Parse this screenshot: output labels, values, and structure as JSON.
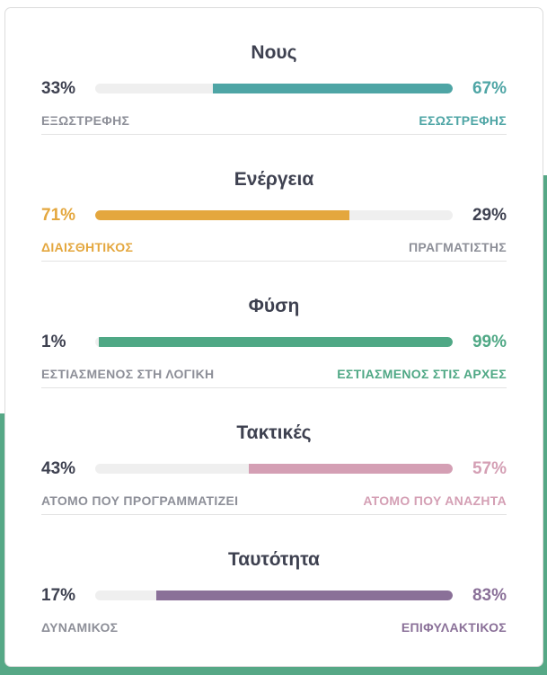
{
  "traits": [
    {
      "title": "Νους",
      "left": {
        "percent": "33%",
        "label": "ΕΞΩΣΤΡΕΦΗΣ",
        "value": 33
      },
      "right": {
        "percent": "67%",
        "label": "ΕΣΩΣΤΡΕΦΗΣ",
        "value": 67
      },
      "dominant": "right",
      "color": "#4ea5a5"
    },
    {
      "title": "Ενέργεια",
      "left": {
        "percent": "71%",
        "label": "ΔΙΑΙΣΘΗΤΙΚΟΣ",
        "value": 71
      },
      "right": {
        "percent": "29%",
        "label": "ΠΡΑΓΜΑΤΙΣΤΗΣ",
        "value": 29
      },
      "dominant": "left",
      "color": "#e4a73e"
    },
    {
      "title": "Φύση",
      "left": {
        "percent": "1%",
        "label": "ΕΣΤΙΑΣΜΕΝΟΣ ΣΤΗ ΛΟΓΙΚΗ",
        "value": 1
      },
      "right": {
        "percent": "99%",
        "label": "ΕΣΤΙΑΣΜΕΝΟΣ ΣΤΙΣ ΑΡΧΕΣ",
        "value": 99
      },
      "dominant": "right",
      "color": "#4fa885"
    },
    {
      "title": "Τακτικές",
      "left": {
        "percent": "43%",
        "label": "ΑΤΟΜΟ ΠΟΥ ΠΡΟΓΡΑΜΜΑΤΙΖΕΙ",
        "value": 43
      },
      "right": {
        "percent": "57%",
        "label": "ΑΤΟΜΟ ΠΟΥ ΑΝΑΖΗΤΑ",
        "value": 57
      },
      "dominant": "right",
      "color": "#d49fb4"
    },
    {
      "title": "Ταυτότητα",
      "left": {
        "percent": "17%",
        "label": "ΔΥΝΑΜΙΚΟΣ",
        "value": 17
      },
      "right": {
        "percent": "83%",
        "label": "ΕΠΙΦΥΛΑΚΤΙΚΟΣ",
        "value": 83
      },
      "dominant": "right",
      "color": "#8a7098"
    }
  ]
}
